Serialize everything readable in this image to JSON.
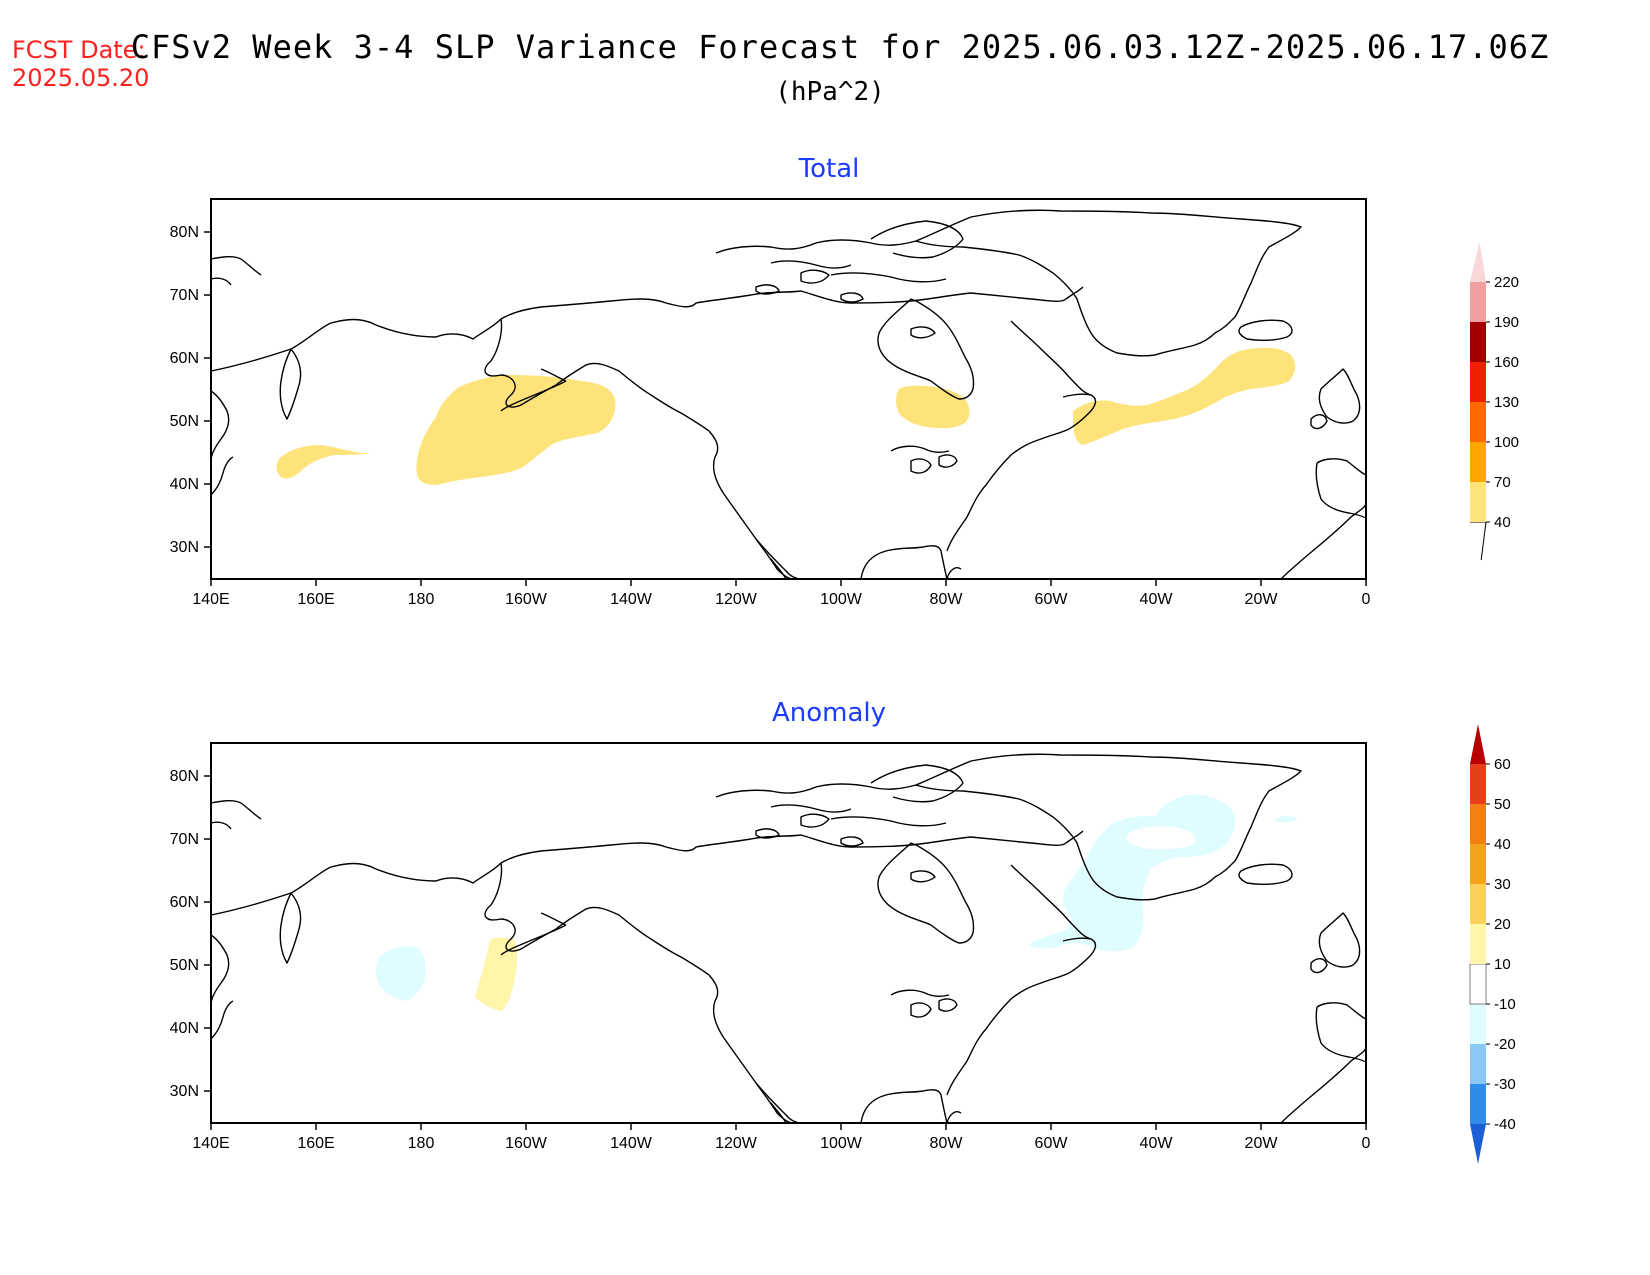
{
  "header": {
    "fcst_label": "FCST Date:",
    "fcst_date": "2025.05.20",
    "title": "CFSv2 Week 3-4 SLP Variance Forecast for 2025.06.03.12Z-2025.06.17.06Z",
    "units": "(hPa^2)"
  },
  "axes": {
    "lon_labels": [
      "140E",
      "160E",
      "180",
      "160W",
      "140W",
      "120W",
      "100W",
      "80W",
      "60W",
      "40W",
      "20W",
      "0"
    ],
    "lat_labels": [
      "80N",
      "70N",
      "60N",
      "50N",
      "40N",
      "30N"
    ]
  },
  "colors": {
    "total_fill": "#fde37a",
    "anom_pos_fill": "#fff5a8",
    "anom_neg_fill": "#dffcff"
  },
  "panels": [
    {
      "title": "Total",
      "colorbar": {
        "labels": [
          "40",
          "70",
          "100",
          "130",
          "160",
          "190",
          "220"
        ],
        "colors": [
          "#fde37a",
          "#ffa500",
          "#ff6a00",
          "#ee2000",
          "#a00000",
          "#f0a0a0",
          "#fbd8d8"
        ]
      }
    },
    {
      "title": "Anomaly",
      "colorbar": {
        "labels": [
          "-40",
          "-30",
          "-20",
          "-10",
          "10",
          "20",
          "30",
          "40",
          "50",
          "60"
        ],
        "colors": [
          "#1c5fd4",
          "#2f8ce9",
          "#8cc8f5",
          "#dffcff",
          "#ffffff",
          "#fff5a8",
          "#fbd05a",
          "#f5a31e",
          "#f08012",
          "#e5401a",
          "#b80000"
        ]
      }
    }
  ]
}
